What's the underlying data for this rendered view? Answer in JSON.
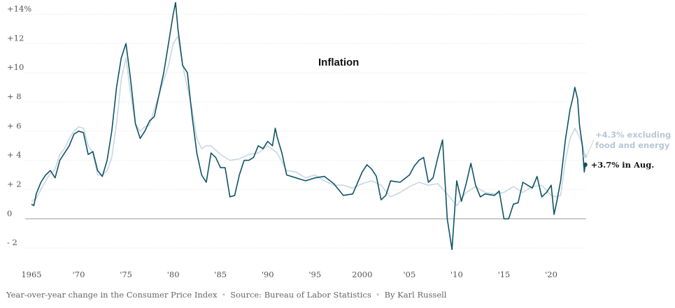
{
  "chart_data": {
    "type": "line",
    "title": "Inflation",
    "xlabel": "",
    "ylabel": "",
    "xlim": [
      1965,
      2023.7
    ],
    "ylim": [
      -3,
      14.5
    ],
    "x_ticks": [
      {
        "value": 1965,
        "label": "1965"
      },
      {
        "value": 1970,
        "label": "'70"
      },
      {
        "value": 1975,
        "label": "'75"
      },
      {
        "value": 1980,
        "label": "'80"
      },
      {
        "value": 1985,
        "label": "'85"
      },
      {
        "value": 1990,
        "label": "'90"
      },
      {
        "value": 1995,
        "label": "'95"
      },
      {
        "value": 2000,
        "label": "2000"
      },
      {
        "value": 2005,
        "label": "'05"
      },
      {
        "value": 2010,
        "label": "'10"
      },
      {
        "value": 2015,
        "label": "'15"
      },
      {
        "value": 2020,
        "label": "'20"
      }
    ],
    "y_ticks": [
      {
        "value": 14,
        "label": "+14%"
      },
      {
        "value": 12,
        "label": "+12"
      },
      {
        "value": 10,
        "label": "+10"
      },
      {
        "value": 8,
        "label": "+ 8"
      },
      {
        "value": 6,
        "label": "+ 6"
      },
      {
        "value": 4,
        "label": "+ 4"
      },
      {
        "value": 2,
        "label": "+ 2"
      },
      {
        "value": 0,
        "label": "0"
      },
      {
        "value": -2,
        "label": "- 2"
      }
    ],
    "grid": "horizontal",
    "series": [
      {
        "name": "",
        "color": "#c9d6e2",
        "x": [
          1965.0,
          1965.5,
          1966.0,
          1966.5,
          1967.0,
          1967.5,
          1968.0,
          1968.5,
          1969.0,
          1969.5,
          1970.0,
          1970.5,
          1971.0,
          1971.5,
          1972.0,
          1972.5,
          1973.0,
          1973.5,
          1974.0,
          1974.5,
          1975.0,
          1975.5,
          1976.0,
          1976.5,
          1977.0,
          1977.5,
          1978.0,
          1978.5,
          1979.0,
          1979.5,
          1980.0,
          1980.5,
          1981.0,
          1981.5,
          1982.0,
          1982.5,
          1983.0,
          1983.5,
          1984.0,
          1985.0,
          1986.0,
          1987.0,
          1988.0,
          1989.0,
          1990.0,
          1991.0,
          1992.0,
          1993.0,
          1994.0,
          1995.0,
          1996.0,
          1997.0,
          1998.0,
          1999.0,
          2000.0,
          2001.0,
          2002.0,
          2003.0,
          2004.0,
          2005.0,
          2006.0,
          2007.0,
          2008.0,
          2009.0,
          2010.0,
          2011.0,
          2012.0,
          2013.0,
          2014.0,
          2015.0,
          2016.0,
          2017.0,
          2018.0,
          2019.0,
          2020.0,
          2020.5,
          2021.0,
          2021.5,
          2022.0,
          2022.5,
          2023.0,
          2023.3,
          2023.6
        ],
        "values": [
          1.2,
          1.4,
          2.0,
          2.6,
          3.1,
          3.4,
          4.4,
          4.8,
          5.5,
          6.0,
          6.3,
          6.2,
          5.0,
          4.5,
          3.0,
          3.0,
          3.3,
          4.2,
          6.5,
          9.5,
          11.0,
          8.5,
          6.5,
          6.0,
          6.3,
          6.4,
          7.5,
          8.5,
          9.5,
          10.5,
          12.0,
          12.5,
          10.5,
          9.0,
          7.5,
          5.5,
          4.8,
          5.0,
          5.0,
          4.4,
          4.0,
          4.1,
          4.4,
          4.5,
          5.0,
          4.5,
          3.3,
          3.2,
          2.8,
          3.0,
          2.6,
          2.3,
          2.3,
          2.1,
          2.4,
          2.6,
          2.3,
          1.5,
          1.8,
          2.2,
          2.5,
          2.3,
          2.4,
          1.7,
          0.9,
          1.8,
          2.2,
          1.8,
          1.7,
          1.8,
          2.2,
          1.8,
          2.2,
          2.3,
          1.6,
          1.5,
          1.6,
          4.0,
          5.5,
          6.2,
          5.6,
          5.0,
          4.3
        ]
      },
      {
        "name": "",
        "color": "#0e5367",
        "x": [
          1965.0,
          1965.25,
          1965.5,
          1966.0,
          1966.5,
          1967.0,
          1967.5,
          1968.0,
          1968.5,
          1969.0,
          1969.5,
          1970.0,
          1970.5,
          1971.0,
          1971.5,
          1972.0,
          1972.5,
          1973.0,
          1973.5,
          1974.0,
          1974.5,
          1975.0,
          1975.5,
          1976.0,
          1976.5,
          1977.0,
          1977.5,
          1978.0,
          1978.5,
          1979.0,
          1979.5,
          1980.0,
          1980.25,
          1980.5,
          1981.0,
          1981.5,
          1982.0,
          1982.5,
          1983.0,
          1983.5,
          1984.0,
          1984.5,
          1985.0,
          1985.5,
          1986.0,
          1986.5,
          1987.0,
          1987.5,
          1988.0,
          1988.5,
          1989.0,
          1989.5,
          1990.0,
          1990.5,
          1990.8,
          1991.0,
          1991.5,
          1992.0,
          1993.0,
          1994.0,
          1995.0,
          1996.0,
          1997.0,
          1998.0,
          1999.0,
          2000.0,
          2000.5,
          2001.0,
          2001.5,
          2002.0,
          2002.5,
          2003.0,
          2004.0,
          2005.0,
          2005.5,
          2006.0,
          2006.5,
          2007.0,
          2007.5,
          2008.0,
          2008.5,
          2009.0,
          2009.5,
          2010.0,
          2010.5,
          2011.0,
          2011.5,
          2012.0,
          2012.5,
          2013.0,
          2014.0,
          2014.5,
          2015.0,
          2015.5,
          2016.0,
          2016.5,
          2017.0,
          2018.0,
          2018.5,
          2019.0,
          2019.5,
          2020.0,
          2020.3,
          2020.6,
          2021.0,
          2021.5,
          2022.0,
          2022.3,
          2022.5,
          2022.8,
          2023.0,
          2023.3,
          2023.5,
          2023.6
        ],
        "values": [
          1.0,
          0.9,
          1.7,
          2.5,
          3.0,
          3.3,
          2.8,
          4.0,
          4.5,
          5.0,
          5.8,
          6.0,
          5.9,
          4.4,
          4.6,
          3.3,
          2.9,
          4.0,
          6.0,
          9.0,
          11.0,
          12.0,
          9.5,
          6.5,
          5.5,
          6.0,
          6.7,
          7.0,
          8.5,
          10.0,
          12.0,
          14.0,
          14.8,
          13.0,
          10.5,
          10.0,
          7.0,
          4.5,
          3.0,
          2.5,
          4.5,
          4.2,
          3.5,
          3.5,
          1.5,
          1.6,
          3.0,
          4.0,
          4.0,
          4.2,
          5.0,
          4.8,
          5.3,
          5.0,
          6.2,
          5.6,
          4.5,
          3.0,
          2.8,
          2.6,
          2.8,
          2.9,
          2.4,
          1.6,
          1.7,
          3.2,
          3.7,
          3.4,
          2.9,
          1.3,
          1.6,
          2.6,
          2.5,
          3.0,
          3.6,
          4.0,
          4.2,
          2.5,
          2.8,
          4.2,
          5.4,
          0.0,
          -2.1,
          2.6,
          1.2,
          2.4,
          3.8,
          2.3,
          1.5,
          1.7,
          1.6,
          1.9,
          0.0,
          0.0,
          1.0,
          1.1,
          2.5,
          2.1,
          2.9,
          1.5,
          1.8,
          2.3,
          0.3,
          1.2,
          2.6,
          5.4,
          7.5,
          8.3,
          9.0,
          8.2,
          6.4,
          5.0,
          3.2,
          3.7
        ],
        "end_label": "+3.7% in Aug."
      }
    ],
    "annotations": {
      "core": [
        "+4.3% excluding",
        "food and energy"
      ],
      "headline": "+3.7% in Aug."
    }
  },
  "footer": {
    "description": "Year-over-year change in the Consumer Price Index",
    "source": "Source: Bureau of Labor Statistics",
    "byline": "By Karl Russell"
  }
}
